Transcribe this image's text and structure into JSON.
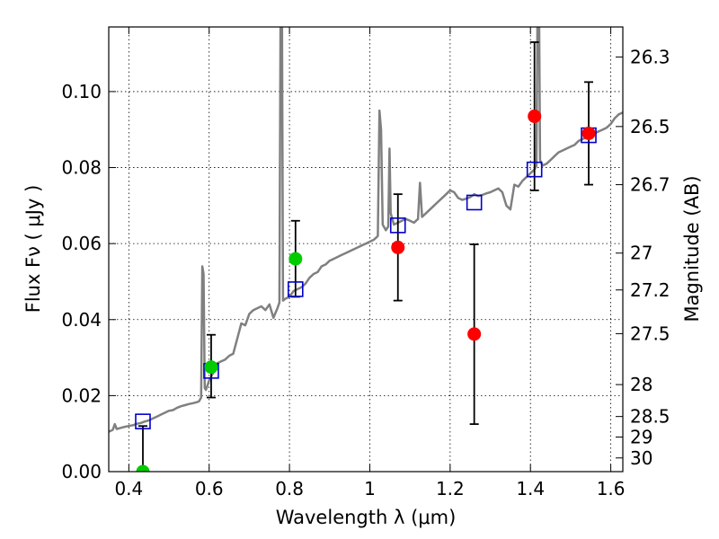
{
  "chart_data": {
    "type": "scatter",
    "xlabel": "Wavelength  λ (μm)",
    "ylabel": "Flux  Fν  ( μJy )",
    "y2label": "Magnitude (AB)",
    "xlim": [
      0.35,
      1.63
    ],
    "ylim": [
      0.0,
      0.117
    ],
    "grid": true,
    "x_ticks": [
      0.4,
      0.6,
      0.8,
      1.0,
      1.2,
      1.4,
      1.6
    ],
    "x_tick_labels": [
      "0.4",
      "0.6",
      "0.8",
      "1",
      "1.2",
      "1.4",
      "1.6"
    ],
    "y_ticks": [
      0.0,
      0.02,
      0.04,
      0.06,
      0.08,
      0.1
    ],
    "y_tick_labels": [
      "0.00",
      "0.02",
      "0.04",
      "0.06",
      "0.08",
      "0.10"
    ],
    "y2_ticks": [
      {
        "label": "26.3",
        "flux": 0.1091
      },
      {
        "label": "26.5",
        "flux": 0.0908
      },
      {
        "label": "26.7",
        "flux": 0.0755
      },
      {
        "label": "27",
        "flux": 0.0575
      },
      {
        "label": "27.2",
        "flux": 0.0478
      },
      {
        "label": "27.5",
        "flux": 0.0363
      },
      {
        "label": "28",
        "flux": 0.0229
      },
      {
        "label": "28.5",
        "flux": 0.0145
      },
      {
        "label": "29",
        "flux": 0.0091
      },
      {
        "label": "30",
        "flux": 0.0036
      }
    ],
    "model_spectrum": {
      "color": "#808080",
      "points": [
        [
          0.35,
          0.0105
        ],
        [
          0.36,
          0.011
        ],
        [
          0.365,
          0.0125
        ],
        [
          0.37,
          0.0112
        ],
        [
          0.38,
          0.0115
        ],
        [
          0.39,
          0.0118
        ],
        [
          0.4,
          0.012
        ],
        [
          0.41,
          0.0122
        ],
        [
          0.42,
          0.0126
        ],
        [
          0.43,
          0.0128
        ],
        [
          0.44,
          0.0132
        ],
        [
          0.45,
          0.0135
        ],
        [
          0.46,
          0.014
        ],
        [
          0.47,
          0.0145
        ],
        [
          0.48,
          0.015
        ],
        [
          0.49,
          0.0155
        ],
        [
          0.5,
          0.016
        ],
        [
          0.51,
          0.0162
        ],
        [
          0.52,
          0.0168
        ],
        [
          0.53,
          0.0172
        ],
        [
          0.54,
          0.0175
        ],
        [
          0.55,
          0.0178
        ],
        [
          0.56,
          0.018
        ],
        [
          0.57,
          0.0183
        ],
        [
          0.575,
          0.0185
        ],
        [
          0.58,
          0.0195
        ],
        [
          0.583,
          0.054
        ],
        [
          0.586,
          0.052
        ],
        [
          0.589,
          0.022
        ],
        [
          0.592,
          0.0215
        ],
        [
          0.6,
          0.024
        ],
        [
          0.61,
          0.026
        ],
        [
          0.62,
          0.0285
        ],
        [
          0.63,
          0.029
        ],
        [
          0.64,
          0.0295
        ],
        [
          0.65,
          0.0305
        ],
        [
          0.66,
          0.031
        ],
        [
          0.67,
          0.035
        ],
        [
          0.68,
          0.039
        ],
        [
          0.69,
          0.0385
        ],
        [
          0.7,
          0.0415
        ],
        [
          0.71,
          0.0425
        ],
        [
          0.72,
          0.043
        ],
        [
          0.73,
          0.0435
        ],
        [
          0.74,
          0.0425
        ],
        [
          0.75,
          0.044
        ],
        [
          0.76,
          0.0405
        ],
        [
          0.77,
          0.043
        ],
        [
          0.775,
          0.0445
        ],
        [
          0.778,
          0.13
        ],
        [
          0.781,
          0.13
        ],
        [
          0.784,
          0.045
        ],
        [
          0.79,
          0.0455
        ],
        [
          0.8,
          0.046
        ],
        [
          0.81,
          0.0475
        ],
        [
          0.82,
          0.048
        ],
        [
          0.83,
          0.0485
        ],
        [
          0.84,
          0.0495
        ],
        [
          0.85,
          0.051
        ],
        [
          0.86,
          0.052
        ],
        [
          0.87,
          0.0525
        ],
        [
          0.88,
          0.054
        ],
        [
          0.89,
          0.0545
        ],
        [
          0.9,
          0.0555
        ],
        [
          0.91,
          0.056
        ],
        [
          0.92,
          0.0565
        ],
        [
          0.93,
          0.057
        ],
        [
          0.94,
          0.0575
        ],
        [
          0.95,
          0.058
        ],
        [
          0.96,
          0.0585
        ],
        [
          0.97,
          0.059
        ],
        [
          0.98,
          0.0595
        ],
        [
          0.99,
          0.06
        ],
        [
          1.0,
          0.0605
        ],
        [
          1.01,
          0.061
        ],
        [
          1.015,
          0.0615
        ],
        [
          1.02,
          0.062
        ],
        [
          1.024,
          0.095
        ],
        [
          1.028,
          0.09
        ],
        [
          1.032,
          0.065
        ],
        [
          1.04,
          0.0635
        ],
        [
          1.046,
          0.0645
        ],
        [
          1.049,
          0.085
        ],
        [
          1.052,
          0.068
        ],
        [
          1.06,
          0.065
        ],
        [
          1.07,
          0.0655
        ],
        [
          1.08,
          0.066
        ],
        [
          1.09,
          0.0665
        ],
        [
          1.1,
          0.066
        ],
        [
          1.11,
          0.0655
        ],
        [
          1.12,
          0.0665
        ],
        [
          1.125,
          0.076
        ],
        [
          1.13,
          0.067
        ],
        [
          1.14,
          0.068
        ],
        [
          1.15,
          0.069
        ],
        [
          1.16,
          0.07
        ],
        [
          1.17,
          0.071
        ],
        [
          1.18,
          0.072
        ],
        [
          1.19,
          0.073
        ],
        [
          1.2,
          0.074
        ],
        [
          1.21,
          0.0735
        ],
        [
          1.22,
          0.072
        ],
        [
          1.23,
          0.0715
        ],
        [
          1.24,
          0.0718
        ],
        [
          1.25,
          0.0722
        ],
        [
          1.26,
          0.073
        ],
        [
          1.27,
          0.0725
        ],
        [
          1.28,
          0.0728
        ],
        [
          1.29,
          0.0732
        ],
        [
          1.3,
          0.0735
        ],
        [
          1.31,
          0.074
        ],
        [
          1.32,
          0.0745
        ],
        [
          1.33,
          0.0735
        ],
        [
          1.34,
          0.07
        ],
        [
          1.35,
          0.069
        ],
        [
          1.36,
          0.0755
        ],
        [
          1.37,
          0.075
        ],
        [
          1.38,
          0.0765
        ],
        [
          1.39,
          0.0775
        ],
        [
          1.4,
          0.0785
        ],
        [
          1.41,
          0.0795
        ],
        [
          1.415,
          0.0805
        ],
        [
          1.418,
          0.13
        ],
        [
          1.421,
          0.13
        ],
        [
          1.424,
          0.082
        ],
        [
          1.43,
          0.0805
        ],
        [
          1.44,
          0.081
        ],
        [
          1.45,
          0.082
        ],
        [
          1.46,
          0.083
        ],
        [
          1.47,
          0.084
        ],
        [
          1.48,
          0.0845
        ],
        [
          1.49,
          0.085
        ],
        [
          1.5,
          0.0855
        ],
        [
          1.51,
          0.086
        ],
        [
          1.52,
          0.087
        ],
        [
          1.53,
          0.0875
        ],
        [
          1.54,
          0.088
        ],
        [
          1.55,
          0.0885
        ],
        [
          1.56,
          0.089
        ],
        [
          1.57,
          0.0895
        ],
        [
          1.58,
          0.09
        ],
        [
          1.59,
          0.0905
        ],
        [
          1.6,
          0.0915
        ],
        [
          1.61,
          0.093
        ],
        [
          1.62,
          0.094
        ],
        [
          1.63,
          0.0945
        ]
      ]
    },
    "model_photometry": {
      "color": "#0000cc",
      "points": [
        [
          0.435,
          0.0132
        ],
        [
          0.605,
          0.0265
        ],
        [
          0.815,
          0.048
        ],
        [
          1.07,
          0.0648
        ],
        [
          1.26,
          0.0708
        ],
        [
          1.41,
          0.0795
        ],
        [
          1.545,
          0.0885
        ]
      ]
    },
    "observed_green": {
      "color": "#00cc00",
      "points": [
        {
          "x": 0.435,
          "y": 0.0,
          "err_low": 0.0,
          "err_high": 0.012
        },
        {
          "x": 0.605,
          "y": 0.0275,
          "err_low": 0.0195,
          "err_high": 0.036
        },
        {
          "x": 0.815,
          "y": 0.056,
          "err_low": 0.046,
          "err_high": 0.066
        }
      ]
    },
    "observed_red": {
      "color": "#ff0000",
      "points": [
        {
          "x": 1.07,
          "y": 0.059,
          "err_low": 0.045,
          "err_high": 0.073
        },
        {
          "x": 1.26,
          "y": 0.0362,
          "err_low": 0.0125,
          "err_high": 0.0598
        },
        {
          "x": 1.41,
          "y": 0.0935,
          "err_low": 0.074,
          "err_high": 0.113
        },
        {
          "x": 1.545,
          "y": 0.089,
          "err_low": 0.0755,
          "err_high": 0.1025
        }
      ]
    }
  }
}
